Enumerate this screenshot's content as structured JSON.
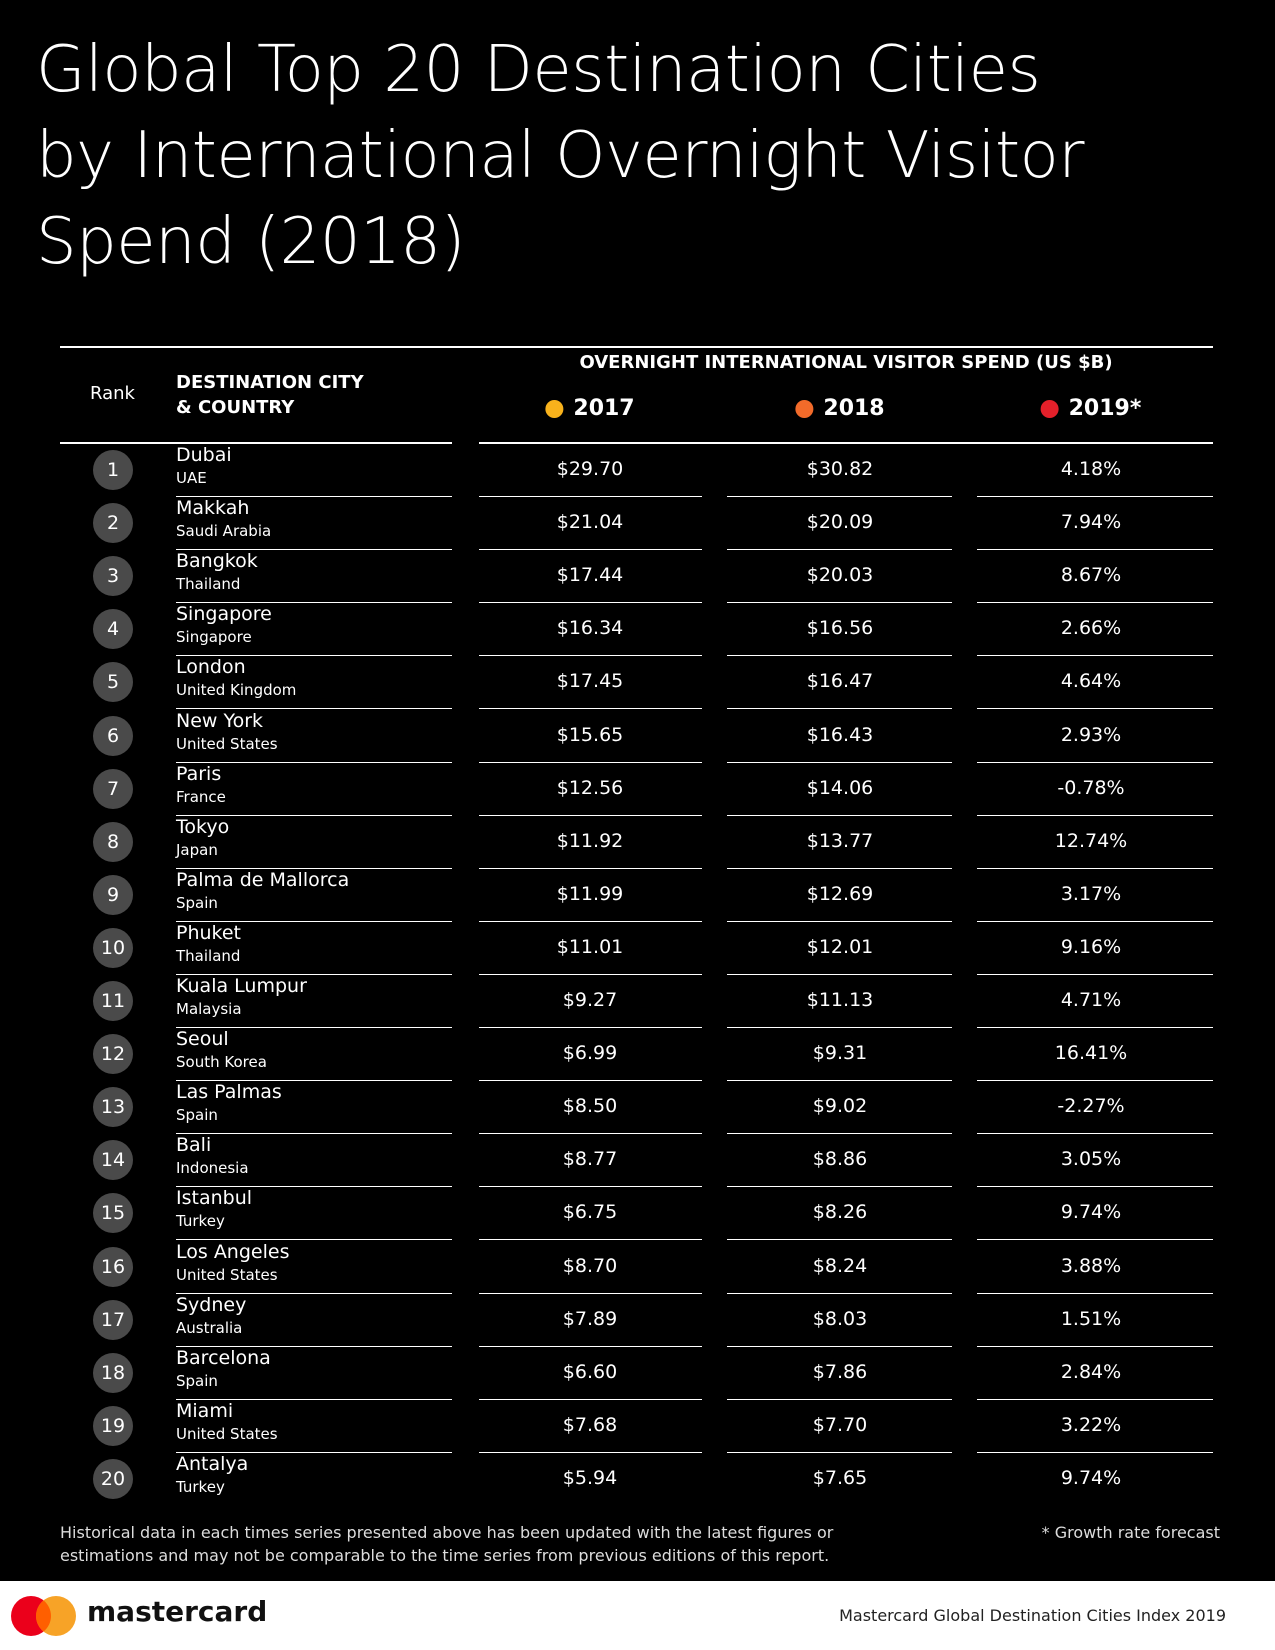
{
  "header": {
    "title_lines": [
      "Global Top 20 Destination Cities",
      "by International Overnight Visitor",
      "Spend (2018)"
    ]
  },
  "table": {
    "rank_header": "Rank",
    "city_header": [
      "DESTINATION CITY",
      "& COUNTRY"
    ],
    "group_header": "OVERNIGHT INTERNATIONAL VISITOR SPEND (US $B)",
    "columns": [
      {
        "label": "2017",
        "color": "#f8b21c"
      },
      {
        "label": "2018",
        "color": "#f26b2a"
      },
      {
        "label": "2019*",
        "color": "#e3202a"
      }
    ],
    "rows": [
      [
        "1",
        "Dubai",
        "UAE",
        "$29.70",
        "$30.82",
        "4.18%"
      ],
      [
        "2",
        "Makkah",
        "Saudi Arabia",
        "$21.04",
        "$20.09",
        "7.94%"
      ],
      [
        "3",
        "Bangkok",
        "Thailand",
        "$17.44",
        "$20.03",
        "8.67%"
      ],
      [
        "4",
        "Singapore",
        "Singapore",
        "$16.34",
        "$16.56",
        "2.66%"
      ],
      [
        "5",
        "London",
        "United Kingdom",
        "$17.45",
        "$16.47",
        "4.64%"
      ],
      [
        "6",
        "New York",
        "United States",
        "$15.65",
        "$16.43",
        "2.93%"
      ],
      [
        "7",
        "Paris",
        "France",
        "$12.56",
        "$14.06",
        "-0.78%"
      ],
      [
        "8",
        "Tokyo",
        "Japan",
        "$11.92",
        "$13.77",
        "12.74%"
      ],
      [
        "9",
        "Palma de Mallorca",
        "Spain",
        "$11.99",
        "$12.69",
        "3.17%"
      ],
      [
        "10",
        "Phuket",
        "Thailand",
        "$11.01",
        "$12.01",
        "9.16%"
      ],
      [
        "11",
        "Kuala Lumpur",
        "Malaysia",
        "$9.27",
        "$11.13",
        "4.71%"
      ],
      [
        "12",
        "Seoul",
        "South Korea",
        "$6.99",
        "$9.31",
        "16.41%"
      ],
      [
        "13",
        "Las Palmas",
        "Spain",
        "$8.50",
        "$9.02",
        "-2.27%"
      ],
      [
        "14",
        "Bali",
        "Indonesia",
        "$8.77",
        "$8.86",
        "3.05%"
      ],
      [
        "15",
        "Istanbul",
        "Turkey",
        "$6.75",
        "$8.26",
        "9.74%"
      ],
      [
        "16",
        "Los Angeles",
        "United States",
        "$8.70",
        "$8.24",
        "3.88%"
      ],
      [
        "17",
        "Sydney",
        "Australia",
        "$7.89",
        "$8.03",
        "1.51%"
      ],
      [
        "18",
        "Barcelona",
        "Spain",
        "$6.60",
        "$7.86",
        "2.84%"
      ],
      [
        "19",
        "Miami",
        "United States",
        "$7.68",
        "$7.70",
        "3.22%"
      ],
      [
        "20",
        "Antalya",
        "Turkey",
        "$5.94",
        "$7.65",
        "9.74%"
      ]
    ]
  },
  "footer": {
    "note_lines": [
      "Historical data in each times series presented above has been updated with the latest figures or",
      "estimations  and may not be comparable to the time series from previous editions of this report."
    ],
    "forecast_note": "* Growth rate forecast",
    "brand": "mastercard",
    "source": "Mastercard Global Destination Cities Index 2019"
  }
}
